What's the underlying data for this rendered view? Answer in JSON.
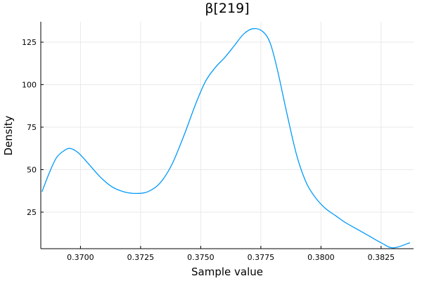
{
  "chart_data": {
    "type": "line",
    "title": "β[219]",
    "xlabel": "Sample value",
    "ylabel": "Density",
    "xlim": [
      0.36835,
      0.38385
    ],
    "ylim": [
      3.5,
      137
    ],
    "xticks": [
      0.37,
      0.3725,
      0.375,
      0.3775,
      0.38,
      0.3825
    ],
    "xtick_labels": [
      "0.3700",
      "0.3725",
      "0.3750",
      "0.3775",
      "0.3800",
      "0.3825"
    ],
    "yticks": [
      25,
      50,
      75,
      100,
      125
    ],
    "ytick_labels": [
      "25",
      "50",
      "75",
      "100",
      "125"
    ],
    "grid": true,
    "legend": "none",
    "line_color": "#009AFA",
    "series": [
      {
        "x": [
          0.3684,
          0.3687,
          0.369,
          0.3693,
          0.36957,
          0.3699,
          0.3703,
          0.3708,
          0.3713,
          0.3718,
          0.3723,
          0.3728,
          0.3733,
          0.3738,
          0.3743,
          0.3748,
          0.3752,
          0.3756,
          0.376,
          0.3764,
          0.3768,
          0.3772,
          0.3776,
          0.3779,
          0.3782,
          0.3786,
          0.379,
          0.3794,
          0.3798,
          0.3802,
          0.3806,
          0.381,
          0.3815,
          0.382,
          0.3825,
          0.383,
          0.3837
        ],
        "y": [
          37,
          48,
          57,
          61,
          62.5,
          60,
          54,
          46,
          40,
          37,
          36,
          37,
          42,
          53,
          70,
          89,
          102,
          110,
          116,
          123,
          130,
          133,
          131,
          124,
          108,
          82,
          58,
          42,
          33,
          27,
          23,
          19,
          15,
          11,
          7,
          4,
          7
        ]
      }
    ]
  }
}
